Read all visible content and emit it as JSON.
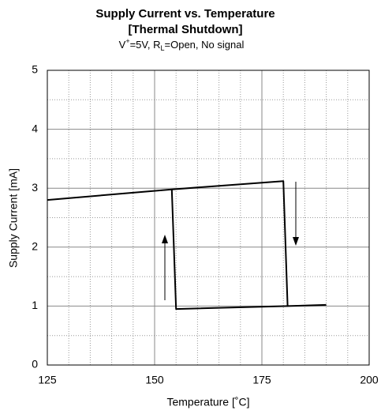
{
  "chart_data": {
    "type": "line",
    "title": [
      "Supply Current vs. Temperature",
      "[Thermal Shutdown]"
    ],
    "subtitle": [
      "V",
      "+",
      "=5V, R",
      "L",
      "=Open, No signal"
    ],
    "xlabel": "Temperature [˚C]",
    "ylabel": "Supply Current  [mA]",
    "xlim": [
      125,
      200
    ],
    "ylim": [
      0,
      5
    ],
    "xticks": [
      125,
      150,
      175,
      200
    ],
    "yticks": [
      0,
      1,
      2,
      3,
      4,
      5
    ],
    "x_minor_ticks": [
      130,
      135,
      140,
      145,
      155,
      160,
      165,
      170,
      180,
      185,
      190,
      195
    ],
    "y_minor_ticks": [
      0.5,
      1.5,
      2.5,
      3.5,
      4.5
    ],
    "grid": true,
    "series": [
      {
        "color": "#000000",
        "x": [
          125,
          154,
          180,
          181,
          190
        ],
        "values": [
          2.8,
          2.98,
          3.12,
          1.0,
          1.02
        ]
      },
      {
        "color": "#000000",
        "x": [
          181,
          155,
          154
        ],
        "values": [
          1.0,
          0.95,
          2.98
        ]
      }
    ]
  }
}
